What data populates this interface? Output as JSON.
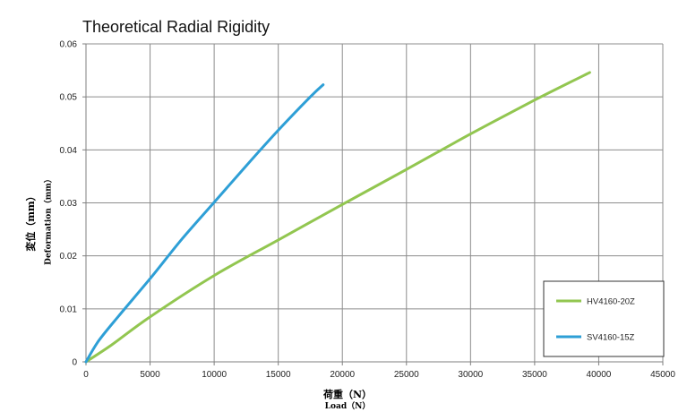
{
  "chart_data": {
    "type": "line",
    "title": "Theoretical Radial Rigidity",
    "xlabel_primary": "荷重（N）",
    "xlabel_secondary": "Load（N）",
    "ylabel_primary": "変位（mm）",
    "ylabel_secondary": "Deformation（mm）",
    "xlim": [
      0,
      45000
    ],
    "ylim": [
      0,
      0.06
    ],
    "x_ticks": [
      0,
      5000,
      10000,
      15000,
      20000,
      25000,
      30000,
      35000,
      40000,
      45000
    ],
    "y_ticks": [
      0,
      0.01,
      0.02,
      0.03,
      0.04,
      0.05,
      0.06
    ],
    "x_tick_labels": [
      "0",
      "5000",
      "10000",
      "15000",
      "20000",
      "25000",
      "30000",
      "35000",
      "40000",
      "45000"
    ],
    "y_tick_labels": [
      "0",
      "0.01",
      "0.02",
      "0.03",
      "0.04",
      "0.05",
      "0.06"
    ],
    "grid": true,
    "legend_position": "bottom-right",
    "series": [
      {
        "name": "HV4160-20Z",
        "color": "#92C650",
        "x": [
          0,
          2000,
          5000,
          10000,
          15000,
          20000,
          25000,
          30000,
          35000,
          39300
        ],
        "y": [
          0,
          0.0032,
          0.0085,
          0.0163,
          0.023,
          0.0297,
          0.0363,
          0.043,
          0.0494,
          0.0546
        ]
      },
      {
        "name": "SV4160-15Z",
        "color": "#2E9FD6",
        "x": [
          0,
          1000,
          2500,
          5000,
          7500,
          10000,
          12500,
          15000,
          17500,
          18500
        ],
        "y": [
          0,
          0.004,
          0.0085,
          0.0157,
          0.0232,
          0.0301,
          0.037,
          0.0437,
          0.05,
          0.0523
        ]
      }
    ]
  }
}
